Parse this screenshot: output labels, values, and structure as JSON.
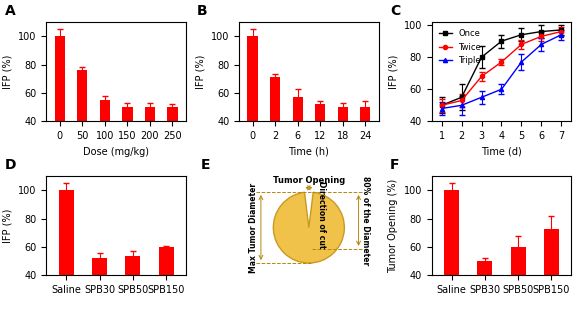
{
  "chart_data": [
    {
      "type": "bar",
      "title": "A",
      "x_label": "Dose (mg/kg)",
      "y_label": "IFP (%)",
      "categories": [
        "0",
        "50",
        "100",
        "150",
        "200",
        "250"
      ],
      "values": [
        100,
        76,
        55,
        50,
        50,
        50
      ],
      "errors": [
        5,
        2,
        3,
        3,
        3,
        2
      ],
      "color": "#ff0000",
      "ylim": [
        40,
        110
      ],
      "yticks": [
        40,
        60,
        80,
        100
      ]
    },
    {
      "type": "bar",
      "title": "B",
      "x_label": "Time (h)",
      "y_label": "IFP (%)",
      "categories": [
        "0",
        "2",
        "6",
        "12",
        "18",
        "24"
      ],
      "values": [
        100,
        71,
        57,
        52,
        50,
        50
      ],
      "errors": [
        5,
        2,
        6,
        2,
        3,
        4
      ],
      "color": "#ff0000",
      "ylim": [
        40,
        110
      ],
      "yticks": [
        40,
        60,
        80,
        100
      ]
    },
    {
      "type": "line",
      "title": "C",
      "x_label": "Time (d)",
      "y_label": "IFP (%)",
      "x": [
        1,
        2,
        3,
        4,
        5,
        6,
        7
      ],
      "series": [
        {
          "name": "Once",
          "color": "#000000",
          "marker": "square",
          "values": [
            50,
            55,
            80,
            90,
            94,
            96,
            97
          ],
          "errors": [
            5,
            8,
            7,
            4,
            4,
            4,
            3
          ]
        },
        {
          "name": "Twice",
          "color": "#ff0000",
          "marker": "circle",
          "values": [
            50,
            53,
            68,
            77,
            88,
            93,
            96
          ],
          "errors": [
            4,
            4,
            3,
            2,
            3,
            3,
            3
          ]
        },
        {
          "name": "Triple",
          "color": "#0000ff",
          "marker": "triangle",
          "values": [
            48,
            50,
            55,
            60,
            77,
            88,
            94
          ],
          "errors": [
            4,
            6,
            4,
            3,
            5,
            4,
            3
          ]
        }
      ],
      "xlim": [
        0.5,
        7.5
      ],
      "xticks": [
        1,
        2,
        3,
        4,
        5,
        6,
        7
      ],
      "ylim": [
        40,
        102
      ],
      "yticks": [
        40,
        60,
        80,
        100
      ],
      "legend": "upper left"
    },
    {
      "type": "bar",
      "title": "D",
      "y_label": "IFP (%)",
      "categories": [
        "Saline",
        "SPB30",
        "SPB50",
        "SPB150"
      ],
      "values": [
        100,
        52,
        54,
        60
      ],
      "errors": [
        5,
        4,
        3,
        1
      ],
      "color": "#ff0000",
      "ylim": [
        40,
        110
      ],
      "yticks": [
        40,
        60,
        80,
        100
      ]
    },
    {
      "type": "diagram",
      "title": "E",
      "annotations": [
        "Tumor Opening",
        "Max Tumor Diameter",
        "Direction of cut",
        "80% of the Diameter"
      ]
    },
    {
      "type": "bar",
      "title": "F",
      "y_label": "Tumor Opening (%)",
      "categories": [
        "Saline",
        "SPB30",
        "SPB50",
        "SPB150"
      ],
      "values": [
        100,
        50,
        60,
        73
      ],
      "errors": [
        5,
        2,
        8,
        9
      ],
      "color": "#ff0000",
      "ylim": [
        40,
        110
      ],
      "yticks": [
        40,
        60,
        80,
        100
      ]
    }
  ]
}
